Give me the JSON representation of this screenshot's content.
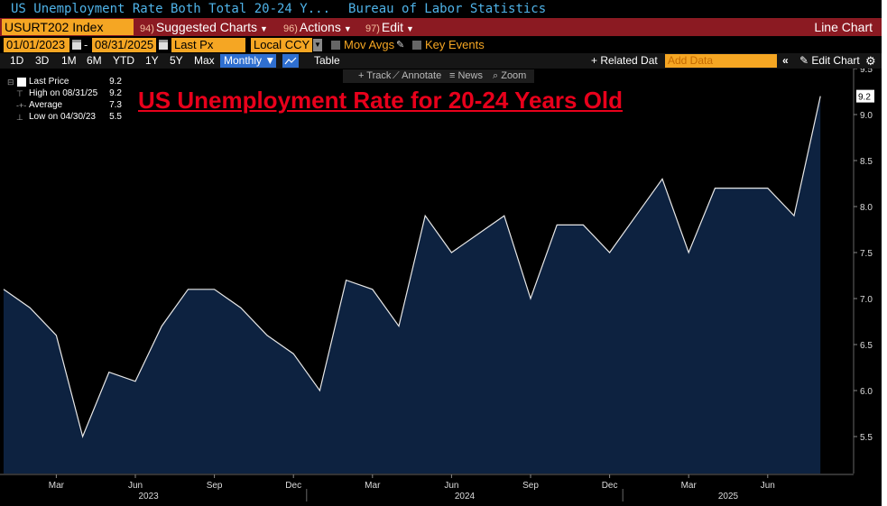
{
  "window": {
    "title_left": "US Unemployment Rate Both Total 20-24 Y...",
    "title_right": "Bureau of Labor Statistics"
  },
  "command_bar": {
    "ticker": "USURT202 Index",
    "suggested_num": "94)",
    "suggested": "Suggested Charts",
    "actions_num": "96)",
    "actions": "Actions",
    "edit_num": "97)",
    "edit": "Edit",
    "chart_type": "Line Chart"
  },
  "date_bar": {
    "start_date": "01/01/2023",
    "end_date": "08/31/2025",
    "price_field": "Last Px",
    "currency": "Local CCY",
    "mov_avgs": "Mov Avgs",
    "key_events": "Key Events"
  },
  "range_bar": {
    "ranges": [
      "1D",
      "3D",
      "1M",
      "6M",
      "YTD",
      "1Y",
      "5Y",
      "Max"
    ],
    "frequency": "Monthly",
    "table": "Table",
    "related_data": "+ Related Dat",
    "add_data_placeholder": "Add Data",
    "edit_chart": "Edit Chart"
  },
  "tools": {
    "track": "Track",
    "annotate": "Annotate",
    "news": "News",
    "zoom": "Zoom"
  },
  "legend": {
    "last_price_label": "Last Price",
    "last_price": "9.2",
    "high_label": "High on 08/31/25",
    "high": "9.2",
    "average_label": "Average",
    "average": "7.3",
    "low_label": "Low on 04/30/23",
    "low": "5.5"
  },
  "overlay_title": "US Unemployment Rate for 20-24 Years Old",
  "chart_data": {
    "type": "area",
    "x": [
      "2023-01",
      "2023-02",
      "2023-03",
      "2023-04",
      "2023-05",
      "2023-06",
      "2023-07",
      "2023-08",
      "2023-09",
      "2023-10",
      "2023-11",
      "2023-12",
      "2024-01",
      "2024-02",
      "2024-03",
      "2024-04",
      "2024-05",
      "2024-06",
      "2024-07",
      "2024-08",
      "2024-09",
      "2024-10",
      "2024-11",
      "2024-12",
      "2025-01",
      "2025-02",
      "2025-03",
      "2025-04",
      "2025-05",
      "2025-06",
      "2025-07",
      "2025-08"
    ],
    "values": [
      7.1,
      6.9,
      6.6,
      5.5,
      6.2,
      6.1,
      6.7,
      7.1,
      7.1,
      6.9,
      6.6,
      6.4,
      6.0,
      7.2,
      7.1,
      6.7,
      7.9,
      7.5,
      7.7,
      7.9,
      7.0,
      7.8,
      7.8,
      7.5,
      7.9,
      8.3,
      7.5,
      8.2,
      8.2,
      8.2,
      7.9,
      9.2
    ],
    "x_month_labels": [
      "Mar",
      "Jun",
      "Sep",
      "Dec",
      "Mar",
      "Jun",
      "Sep",
      "Dec",
      "Mar",
      "Jun"
    ],
    "x_year_labels": [
      "2023",
      "2024",
      "2025"
    ],
    "y_ticks": [
      "5.5",
      "6.0",
      "6.5",
      "7.0",
      "7.5",
      "8.0",
      "8.5",
      "9.0",
      "9.5"
    ],
    "ylim": [
      5.1,
      9.6
    ],
    "last_value_label": "9.2",
    "line_color": "#e8e8e8",
    "fill_color": "#0d2240",
    "background": "#000000",
    "grid": false
  }
}
